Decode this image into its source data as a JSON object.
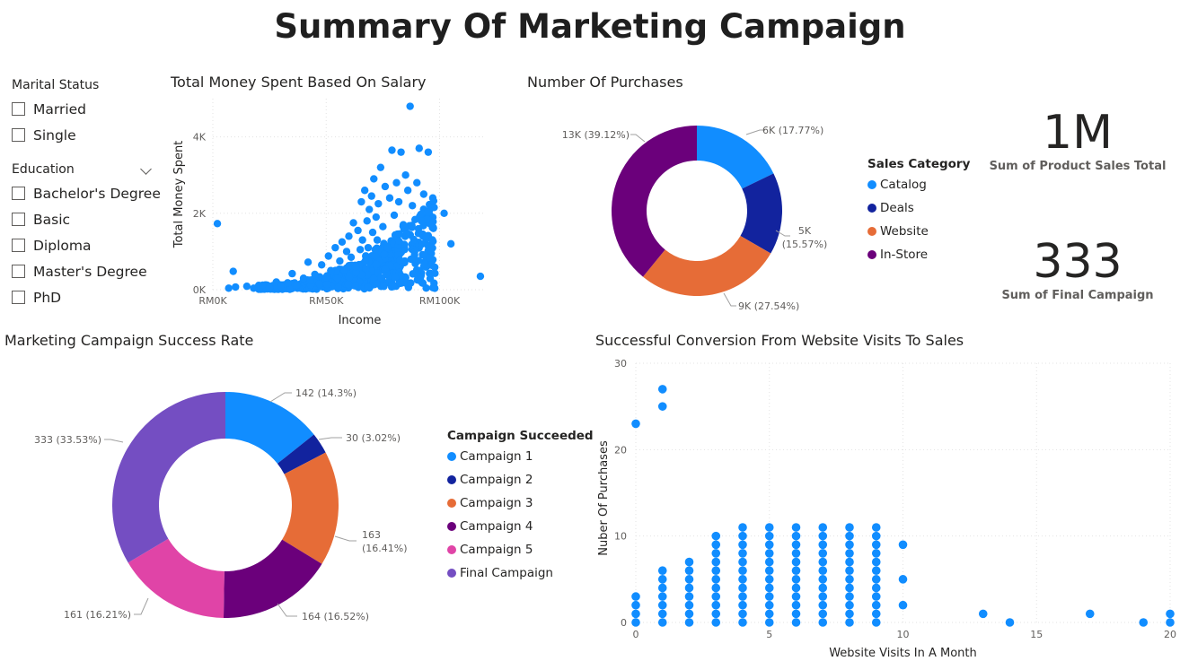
{
  "page": {
    "title": "Summary Of Marketing Campaign"
  },
  "slicers": {
    "marital": {
      "title": "Marital Status",
      "items": [
        "Married",
        "Single"
      ]
    },
    "education": {
      "title": "Education",
      "items": [
        "Bachelor's Degree",
        "Basic",
        "Diploma",
        "Master's Degree",
        "PhD"
      ]
    }
  },
  "cards": [
    {
      "value": "1M",
      "label": "Sum of Product Sales Total"
    },
    {
      "value": "333",
      "label": "Sum of Final Campaign"
    }
  ],
  "chart_data": [
    {
      "id": "salary_scatter",
      "type": "scatter",
      "title": "Total Money Spent Based On Salary",
      "xlabel": "Income",
      "ylabel": "Total Money Spent",
      "xlim": [
        0,
        120000
      ],
      "ylim": [
        0,
        5000
      ],
      "x_ticks": [
        0,
        50000,
        100000
      ],
      "x_tick_labels": [
        "RM0K",
        "RM50K",
        "RM100K"
      ],
      "y_ticks": [
        0,
        2000,
        4000
      ],
      "y_tick_labels": [
        "0K",
        "2K",
        "4K"
      ],
      "color": "#118DFF",
      "points": [
        [
          2000,
          1730
        ],
        [
          7000,
          40
        ],
        [
          9000,
          480
        ],
        [
          10000,
          70
        ],
        [
          15000,
          90
        ],
        [
          18000,
          40
        ],
        [
          22000,
          120
        ],
        [
          25000,
          60
        ],
        [
          28000,
          200
        ],
        [
          30000,
          90
        ],
        [
          33000,
          180
        ],
        [
          35000,
          420
        ],
        [
          37000,
          120
        ],
        [
          40000,
          300
        ],
        [
          42000,
          720
        ],
        [
          43000,
          250
        ],
        [
          45000,
          400
        ],
        [
          47000,
          160
        ],
        [
          48000,
          650
        ],
        [
          50000,
          320
        ],
        [
          51000,
          880
        ],
        [
          52000,
          500
        ],
        [
          54000,
          1100
        ],
        [
          55000,
          300
        ],
        [
          56000,
          750
        ],
        [
          57000,
          1250
        ],
        [
          58000,
          520
        ],
        [
          59000,
          1000
        ],
        [
          60000,
          1400
        ],
        [
          61000,
          850
        ],
        [
          62000,
          1750
        ],
        [
          63000,
          600
        ],
        [
          64000,
          1550
        ],
        [
          65000,
          1050
        ],
        [
          65500,
          2300
        ],
        [
          66000,
          1300
        ],
        [
          67000,
          2600
        ],
        [
          68000,
          1800
        ],
        [
          68500,
          1100
        ],
        [
          69000,
          2100
        ],
        [
          70000,
          2450
        ],
        [
          70500,
          1500
        ],
        [
          71000,
          2900
        ],
        [
          72000,
          1900
        ],
        [
          72500,
          1300
        ],
        [
          73000,
          2250
        ],
        [
          74000,
          3200
        ],
        [
          75000,
          1650
        ],
        [
          76000,
          2700
        ],
        [
          77000,
          1100
        ],
        [
          78000,
          2400
        ],
        [
          79000,
          3650
        ],
        [
          80000,
          1950
        ],
        [
          81000,
          2800
        ],
        [
          82000,
          2300
        ],
        [
          83000,
          3600
        ],
        [
          84000,
          1700
        ],
        [
          85000,
          3000
        ],
        [
          86000,
          2600
        ],
        [
          87000,
          4800
        ],
        [
          88000,
          2200
        ],
        [
          90000,
          2800
        ],
        [
          91000,
          3700
        ],
        [
          92000,
          1800
        ],
        [
          93000,
          2500
        ],
        [
          94000,
          1400
        ],
        [
          95000,
          3600
        ],
        [
          97000,
          2400
        ],
        [
          102000,
          2000
        ],
        [
          105000,
          1200
        ],
        [
          118000,
          350
        ]
      ],
      "cloud": {
        "n": 700,
        "x_range": [
          20000,
          98000
        ]
      }
    },
    {
      "id": "purchases_donut",
      "type": "pie",
      "title": "Number Of Purchases",
      "legend_title": "Sales Category",
      "legend_position": "right",
      "series": [
        {
          "name": "Catalog",
          "value": 6000,
          "label": "6K (17.77%)",
          "percent": 17.77,
          "color": "#118DFF"
        },
        {
          "name": "Deals",
          "value": 5000,
          "label": "5K (15.57%)",
          "percent": 15.57,
          "color": "#12239E"
        },
        {
          "name": "Website",
          "value": 9000,
          "label": "9K (27.54%)",
          "percent": 27.54,
          "color": "#E66C37"
        },
        {
          "name": "In-Store",
          "value": 13000,
          "label": "13K (39.12%)",
          "percent": 39.12,
          "color": "#6B007B"
        }
      ]
    },
    {
      "id": "campaign_donut",
      "type": "pie",
      "title": "Marketing Campaign Success Rate",
      "legend_title": "Campaign Succeeded",
      "legend_position": "right",
      "series": [
        {
          "name": "Campaign 1",
          "value": 142,
          "label": "142 (14.3%)",
          "percent": 14.3,
          "color": "#118DFF"
        },
        {
          "name": "Campaign 2",
          "value": 30,
          "label": "30 (3.02%)",
          "percent": 3.02,
          "color": "#12239E"
        },
        {
          "name": "Campaign 3",
          "value": 163,
          "label": "163 (16.41%)",
          "percent": 16.41,
          "color": "#E66C37"
        },
        {
          "name": "Campaign 4",
          "value": 164,
          "label": "164 (16.52%)",
          "percent": 16.52,
          "color": "#6B007B"
        },
        {
          "name": "Campaign 5",
          "value": 161,
          "label": "161 (16.21%)",
          "percent": 16.21,
          "color": "#E044A7"
        },
        {
          "name": "Final Campaign",
          "value": 333,
          "label": "333 (33.53%)",
          "percent": 33.53,
          "color": "#744EC2"
        }
      ]
    },
    {
      "id": "visits_scatter",
      "type": "scatter",
      "title": "Successful Conversion From Website Visits To Sales",
      "xlabel": "Website Visits In A Month",
      "ylabel": "Nuber Of Purchases",
      "xlim": [
        0,
        20
      ],
      "ylim": [
        0,
        30
      ],
      "x_ticks": [
        0,
        5,
        10,
        15,
        20
      ],
      "y_ticks": [
        0,
        10,
        20,
        30
      ],
      "color": "#118DFF",
      "points": [
        [
          0,
          0
        ],
        [
          0,
          1
        ],
        [
          0,
          2
        ],
        [
          0,
          3
        ],
        [
          0,
          23
        ],
        [
          1,
          0
        ],
        [
          1,
          1
        ],
        [
          1,
          2
        ],
        [
          1,
          3
        ],
        [
          1,
          4
        ],
        [
          1,
          5
        ],
        [
          1,
          6
        ],
        [
          1,
          25
        ],
        [
          1,
          27
        ],
        [
          2,
          0
        ],
        [
          2,
          1
        ],
        [
          2,
          2
        ],
        [
          2,
          3
        ],
        [
          2,
          4
        ],
        [
          2,
          5
        ],
        [
          2,
          6
        ],
        [
          2,
          7
        ],
        [
          3,
          0
        ],
        [
          3,
          1
        ],
        [
          3,
          2
        ],
        [
          3,
          3
        ],
        [
          3,
          4
        ],
        [
          3,
          5
        ],
        [
          3,
          6
        ],
        [
          3,
          7
        ],
        [
          3,
          8
        ],
        [
          3,
          9
        ],
        [
          3,
          10
        ],
        [
          4,
          0
        ],
        [
          4,
          1
        ],
        [
          4,
          2
        ],
        [
          4,
          3
        ],
        [
          4,
          4
        ],
        [
          4,
          5
        ],
        [
          4,
          6
        ],
        [
          4,
          7
        ],
        [
          4,
          8
        ],
        [
          4,
          9
        ],
        [
          4,
          10
        ],
        [
          4,
          11
        ],
        [
          5,
          0
        ],
        [
          5,
          1
        ],
        [
          5,
          2
        ],
        [
          5,
          3
        ],
        [
          5,
          4
        ],
        [
          5,
          5
        ],
        [
          5,
          6
        ],
        [
          5,
          7
        ],
        [
          5,
          8
        ],
        [
          5,
          9
        ],
        [
          5,
          10
        ],
        [
          5,
          11
        ],
        [
          6,
          0
        ],
        [
          6,
          1
        ],
        [
          6,
          2
        ],
        [
          6,
          3
        ],
        [
          6,
          4
        ],
        [
          6,
          5
        ],
        [
          6,
          6
        ],
        [
          6,
          7
        ],
        [
          6,
          8
        ],
        [
          6,
          9
        ],
        [
          6,
          10
        ],
        [
          6,
          11
        ],
        [
          7,
          0
        ],
        [
          7,
          1
        ],
        [
          7,
          2
        ],
        [
          7,
          3
        ],
        [
          7,
          4
        ],
        [
          7,
          5
        ],
        [
          7,
          6
        ],
        [
          7,
          7
        ],
        [
          7,
          8
        ],
        [
          7,
          9
        ],
        [
          7,
          10
        ],
        [
          7,
          11
        ],
        [
          8,
          0
        ],
        [
          8,
          1
        ],
        [
          8,
          2
        ],
        [
          8,
          3
        ],
        [
          8,
          4
        ],
        [
          8,
          5
        ],
        [
          8,
          6
        ],
        [
          8,
          7
        ],
        [
          8,
          8
        ],
        [
          8,
          9
        ],
        [
          8,
          10
        ],
        [
          8,
          11
        ],
        [
          9,
          0
        ],
        [
          9,
          1
        ],
        [
          9,
          2
        ],
        [
          9,
          3
        ],
        [
          9,
          4
        ],
        [
          9,
          5
        ],
        [
          9,
          6
        ],
        [
          9,
          7
        ],
        [
          9,
          8
        ],
        [
          9,
          9
        ],
        [
          9,
          10
        ],
        [
          9,
          11
        ],
        [
          10,
          2
        ],
        [
          10,
          5
        ],
        [
          10,
          9
        ],
        [
          13,
          1
        ],
        [
          14,
          0
        ],
        [
          17,
          1
        ],
        [
          19,
          0
        ],
        [
          20,
          1
        ],
        [
          20,
          0
        ]
      ]
    }
  ]
}
